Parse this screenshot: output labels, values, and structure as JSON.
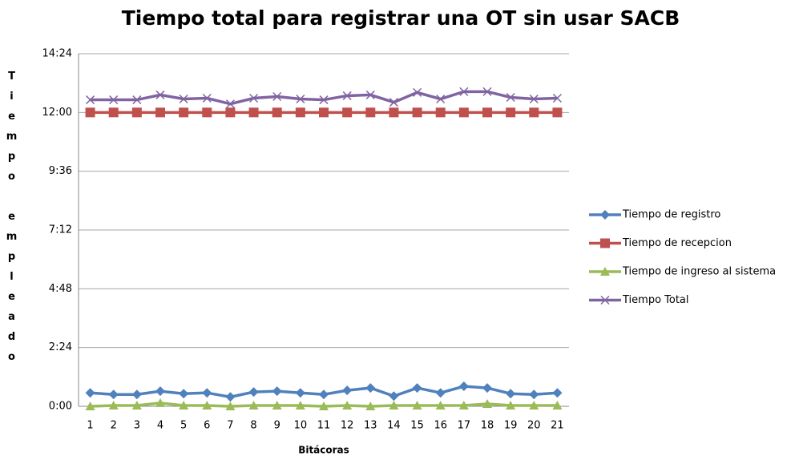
{
  "chart_data": {
    "type": "line",
    "title": "Tiempo total para registrar una OT sin usar SACB",
    "x_label": "Bitácoras",
    "y_label": "Tiempo empleado",
    "categories": [
      "1",
      "2",
      "3",
      "4",
      "5",
      "6",
      "7",
      "8",
      "9",
      "10",
      "11",
      "12",
      "13",
      "14",
      "15",
      "16",
      "17",
      "18",
      "19",
      "20",
      "21"
    ],
    "ylim": [
      0,
      864
    ],
    "yticks": [
      {
        "value": 0,
        "label": "0:00"
      },
      {
        "value": 144,
        "label": "2:24"
      },
      {
        "value": 288,
        "label": "4:48"
      },
      {
        "value": 432,
        "label": "7:12"
      },
      {
        "value": 576,
        "label": "9:36"
      },
      {
        "value": 720,
        "label": "12:00"
      },
      {
        "value": 864,
        "label": "14:24"
      }
    ],
    "grid": true,
    "legend": "right",
    "series": [
      {
        "name": "Tiempo de registro",
        "color": "#4f81bd",
        "marker": "diamond",
        "values": [
          33,
          29,
          29,
          37,
          31,
          33,
          23,
          35,
          37,
          33,
          29,
          39,
          45,
          25,
          45,
          33,
          49,
          45,
          31,
          29,
          33
        ]
      },
      {
        "name": "Tiempo de recepcion",
        "color": "#c0504d",
        "marker": "square",
        "values": [
          720,
          720,
          720,
          720,
          720,
          720,
          720,
          720,
          720,
          720,
          720,
          720,
          720,
          720,
          720,
          720,
          720,
          720,
          720,
          720,
          720
        ]
      },
      {
        "name": "Tiempo de ingreso al sistema",
        "color": "#9bbb59",
        "marker": "triangle",
        "values": [
          0,
          2,
          2,
          8,
          2,
          2,
          0,
          2,
          2,
          2,
          0,
          2,
          0,
          2,
          2,
          2,
          2,
          6,
          2,
          2,
          2
        ]
      },
      {
        "name": "Tiempo Total",
        "color": "#8064a2",
        "marker": "x",
        "values": [
          751,
          751,
          751,
          763,
          753,
          755,
          741,
          755,
          759,
          753,
          751,
          761,
          763,
          745,
          769,
          753,
          771,
          771,
          757,
          753,
          755
        ]
      }
    ]
  }
}
